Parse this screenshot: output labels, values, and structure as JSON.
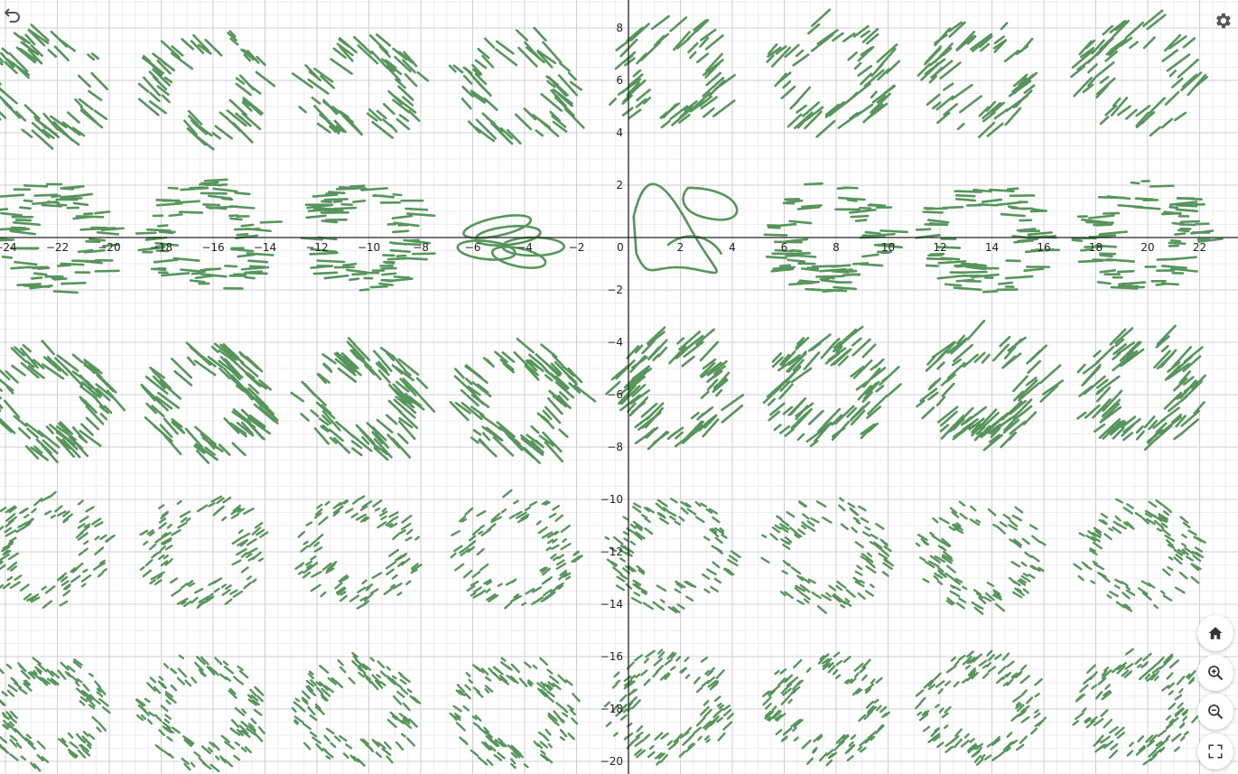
{
  "graph": {
    "origin": "0, 0",
    "x_range": [
      -24.5,
      23
    ],
    "y_range": [
      -20.4,
      9
    ],
    "x_tick_labels": [
      "−24",
      "−22",
      "−20",
      "−18",
      "−16",
      "−14",
      "−12",
      "−10",
      "−8",
      "−6",
      "−4",
      "−2",
      "0",
      "2",
      "4",
      "6",
      "8",
      "10",
      "12",
      "14",
      "16",
      "18",
      "20",
      "22"
    ],
    "x_tick_values": [
      -24,
      -22,
      -20,
      -18,
      -16,
      -14,
      -12,
      -10,
      -8,
      -6,
      -4,
      -2,
      0,
      2,
      4,
      6,
      8,
      10,
      12,
      14,
      16,
      18,
      20,
      22
    ],
    "y_tick_labels": [
      "8",
      "6",
      "4",
      "2",
      "−2",
      "−4",
      "−6",
      "−8",
      "−10",
      "−12",
      "−14",
      "−16",
      "−18",
      "−20"
    ],
    "y_tick_values": [
      8,
      6,
      4,
      2,
      -2,
      -4,
      -6,
      -8,
      -10,
      -12,
      -14,
      -16,
      -18,
      -20
    ],
    "curve_color": "#56955b",
    "tile_columns_x": [
      -22.5,
      -16.5,
      -10.5,
      -4.5,
      1.5,
      7.5,
      13.5,
      19.5
    ],
    "tile_rows_y": [
      6,
      0,
      -6,
      -12,
      -18
    ]
  },
  "toolbar": {
    "undo_icon": "undo-icon",
    "settings_icon": "gear-icon"
  },
  "zoom_controls": {
    "home_icon": "home-icon",
    "zoom_in_icon": "zoom-in-icon",
    "zoom_out_icon": "zoom-out-icon",
    "fullscreen_icon": "fullscreen-icon"
  }
}
